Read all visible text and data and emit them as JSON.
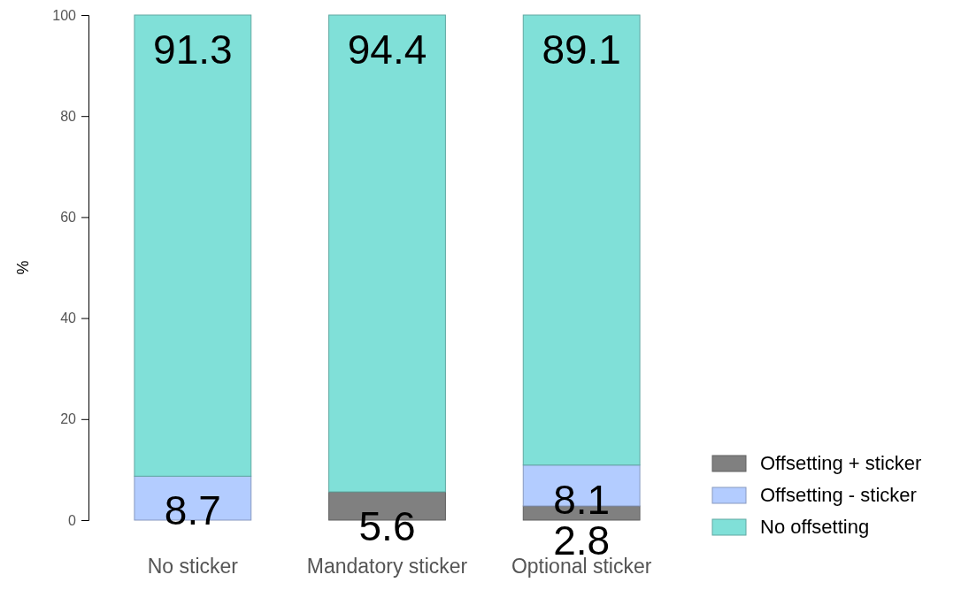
{
  "chart_data": {
    "type": "bar",
    "stacked": true,
    "ylabel": "%",
    "categories": [
      "No sticker",
      "Mandatory sticker",
      "Optional sticker"
    ],
    "series": [
      {
        "name": "Offsetting + sticker",
        "color": "#808080",
        "values": [
          0,
          5.6,
          2.8
        ],
        "value_labels": [
          null,
          "5.6",
          "2.8"
        ]
      },
      {
        "name": "Offsetting - sticker",
        "color": "#b3ccff",
        "values": [
          8.7,
          0,
          8.1
        ],
        "value_labels": [
          "8.7",
          null,
          "8.1"
        ]
      },
      {
        "name": "No offsetting",
        "color": "#80e0d8",
        "values": [
          91.3,
          94.4,
          89.1
        ],
        "value_labels": [
          "91.3",
          "94.4",
          "89.1"
        ]
      }
    ],
    "ylim": [
      0,
      100
    ],
    "yticks": [
      0,
      20,
      40,
      60,
      80,
      100
    ],
    "grid": false,
    "legend": "right"
  }
}
